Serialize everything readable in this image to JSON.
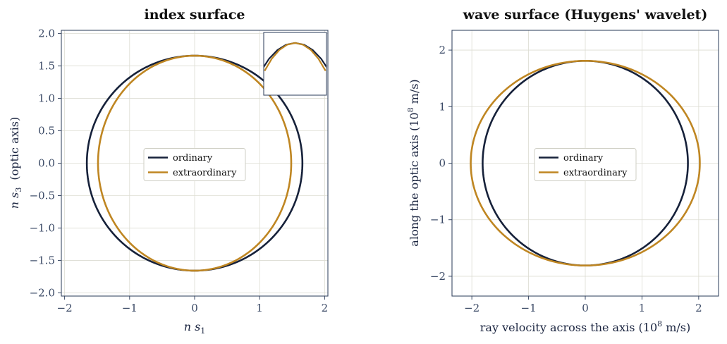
{
  "colors": {
    "ordinary": "#16213a",
    "extraordinary": "#bf8622",
    "frame": "#3b4a66",
    "grid": "#dcdcd2"
  },
  "chart_data": [
    {
      "type": "line",
      "title": "index surface",
      "xlabel": "n s",
      "xlabel_sub": "1",
      "ylabel": "n s",
      "ylabel_sub": "3",
      "ylabel_suffix": "(optic axis)",
      "xlim": [
        -2.05,
        2.05
      ],
      "ylim": [
        -2.05,
        2.05
      ],
      "xticks": [
        -2,
        -1,
        0,
        1,
        2
      ],
      "xtick_labels": [
        "−2",
        "−1",
        "0",
        "1",
        "2"
      ],
      "yticks": [
        -2.0,
        -1.5,
        -1.0,
        -0.5,
        0.0,
        0.5,
        1.0,
        1.5,
        2.0
      ],
      "ytick_labels": [
        "−2.0",
        "−1.5",
        "−1.0",
        "−0.5",
        "0.0",
        "0.5",
        "1.0",
        "1.5",
        "2.0"
      ],
      "grid": true,
      "legend": "center",
      "inset": {
        "xlim": [
          -0.8,
          0.8
        ],
        "ylim": [
          1.2,
          1.75
        ],
        "location": "top-right"
      },
      "series": [
        {
          "name": "ordinary",
          "shape": "ellipse",
          "center": [
            0,
            0
          ],
          "semi_axis_x": 1.658,
          "semi_axis_y": 1.658
        },
        {
          "name": "extraordinary",
          "shape": "ellipse",
          "center": [
            0,
            0
          ],
          "semi_axis_x": 1.486,
          "semi_axis_y": 1.658
        }
      ]
    },
    {
      "type": "line",
      "title": "wave surface (Huygens' wavelet)",
      "xlabel": "ray velocity across the axis  (10",
      "xlabel_sup": "8",
      "xlabel_suffix": " m/s)",
      "ylabel": "along the optic axis  (10",
      "ylabel_sup": "8",
      "ylabel_suffix": " m/s)",
      "xlim": [
        -2.35,
        2.35
      ],
      "ylim": [
        -2.35,
        2.35
      ],
      "xticks": [
        -2,
        -1,
        0,
        1,
        2
      ],
      "xtick_labels": [
        "−2",
        "−1",
        "0",
        "1",
        "2"
      ],
      "yticks": [
        -2,
        -1,
        0,
        1,
        2
      ],
      "ytick_labels": [
        "−2",
        "−1",
        "0",
        "1",
        "2"
      ],
      "grid": true,
      "legend": "center",
      "series": [
        {
          "name": "ordinary",
          "shape": "ellipse",
          "center": [
            0,
            0
          ],
          "semi_axis_x": 1.81,
          "semi_axis_y": 1.81
        },
        {
          "name": "extraordinary",
          "shape": "ellipse",
          "center": [
            0,
            0
          ],
          "semi_axis_x": 2.02,
          "semi_axis_y": 1.81
        }
      ]
    }
  ]
}
